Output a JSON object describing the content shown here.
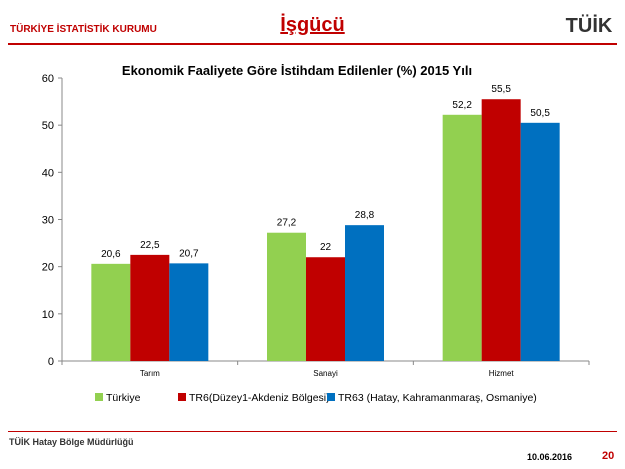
{
  "header": {
    "organization": "TÜRKİYE İSTATİSTİK KURUMU",
    "title": "İşgücü",
    "logo_text": "TÜİK"
  },
  "footer": {
    "office": "TÜİK Hatay Bölge Müdürlüğü",
    "date": "10.06.2016",
    "page": "20"
  },
  "chart_data": {
    "type": "bar",
    "title": "Ekonomik Faaliyete Göre  İstihdam  Edilenler (%) 2015 Yılı",
    "categories": [
      "Tarım",
      "Sanayi",
      "Hizmet"
    ],
    "series": [
      {
        "name": "Türkiye",
        "color": "#92d050",
        "values": [
          20.6,
          27.2,
          52.2
        ],
        "labels": [
          "20,6",
          "27,2",
          "52,2"
        ]
      },
      {
        "name": "TR6(Düzey1-Akdeniz Bölgesi)",
        "color": "#c00000",
        "values": [
          22.5,
          22,
          55.5
        ],
        "labels": [
          "22,5",
          "22",
          "55,5"
        ]
      },
      {
        "name": "TR63 (Hatay, Kahramanmaraş, Osmaniye)",
        "color": "#0070c0",
        "values": [
          20.7,
          28.8,
          50.5
        ],
        "labels": [
          "20,7",
          "28,8",
          "50,5"
        ]
      }
    ],
    "ylim": [
      0,
      60
    ],
    "yticks": [
      0,
      10,
      20,
      30,
      40,
      50,
      60
    ],
    "grid": false,
    "legend_position": "bottom"
  }
}
